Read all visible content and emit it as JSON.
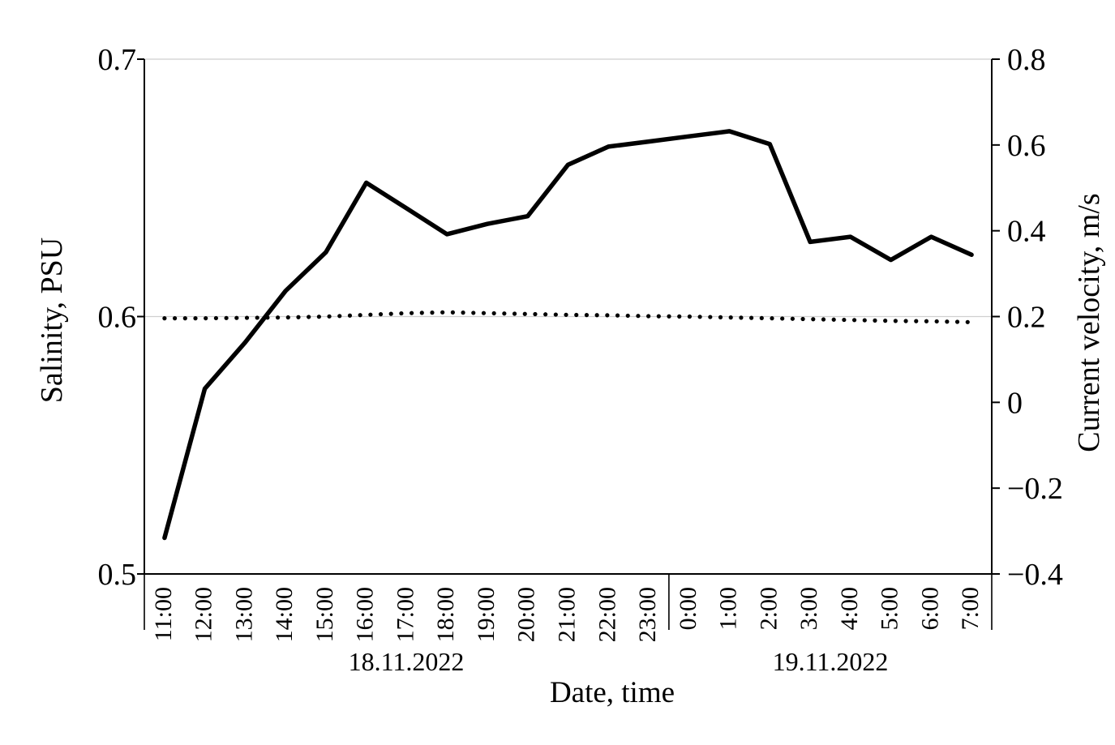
{
  "chart_data": {
    "type": "line",
    "title": "",
    "categories": [
      "11:00",
      "12:00",
      "13:00",
      "14:00",
      "15:00",
      "16:00",
      "17:00",
      "18:00",
      "19:00",
      "20:00",
      "21:00",
      "22:00",
      "23:00",
      "0:00",
      "1:00",
      "2:00",
      "3:00",
      "4:00",
      "5:00",
      "6:00",
      "7:00"
    ],
    "date_groups": [
      {
        "label": "18.11.2022",
        "span": 13
      },
      {
        "label": "19.11.2022",
        "span": 8
      }
    ],
    "series": [
      {
        "name": "Salinity",
        "axis": "left",
        "style": "solid",
        "values": [
          0.514,
          0.572,
          0.59,
          0.61,
          0.625,
          0.652,
          0.642,
          0.632,
          0.636,
          0.639,
          0.659,
          0.666,
          0.668,
          0.67,
          0.672,
          0.667,
          0.629,
          0.631,
          0.622,
          0.631,
          0.624
        ]
      },
      {
        "name": "Current velocity",
        "axis": "right",
        "style": "dotted",
        "values": [
          0.196,
          0.196,
          0.197,
          0.198,
          0.2,
          0.204,
          0.208,
          0.21,
          0.208,
          0.206,
          0.204,
          0.203,
          0.201,
          0.2,
          0.198,
          0.196,
          0.194,
          0.192,
          0.19,
          0.189,
          0.187
        ]
      }
    ],
    "left_axis": {
      "label": "Salinity, PSU",
      "ticks": [
        "0.7",
        "0.6",
        "0.5"
      ],
      "range": [
        0.5,
        0.7
      ]
    },
    "right_axis": {
      "label": "Current velocity, m/s",
      "ticks": [
        "0.8",
        "0.6",
        "0.4",
        "0.2",
        "0",
        "−0.2",
        "−0.4"
      ],
      "range": [
        -0.4,
        0.8
      ]
    },
    "x_axis": {
      "label": "Date, time"
    },
    "grid": {
      "horizontal_at_left_values": [
        0.7,
        0.6
      ]
    },
    "legend": "none",
    "colors": {
      "series": "#000000",
      "grid": "#cfcfcf",
      "axis": "#000000",
      "background": "#ffffff"
    }
  }
}
